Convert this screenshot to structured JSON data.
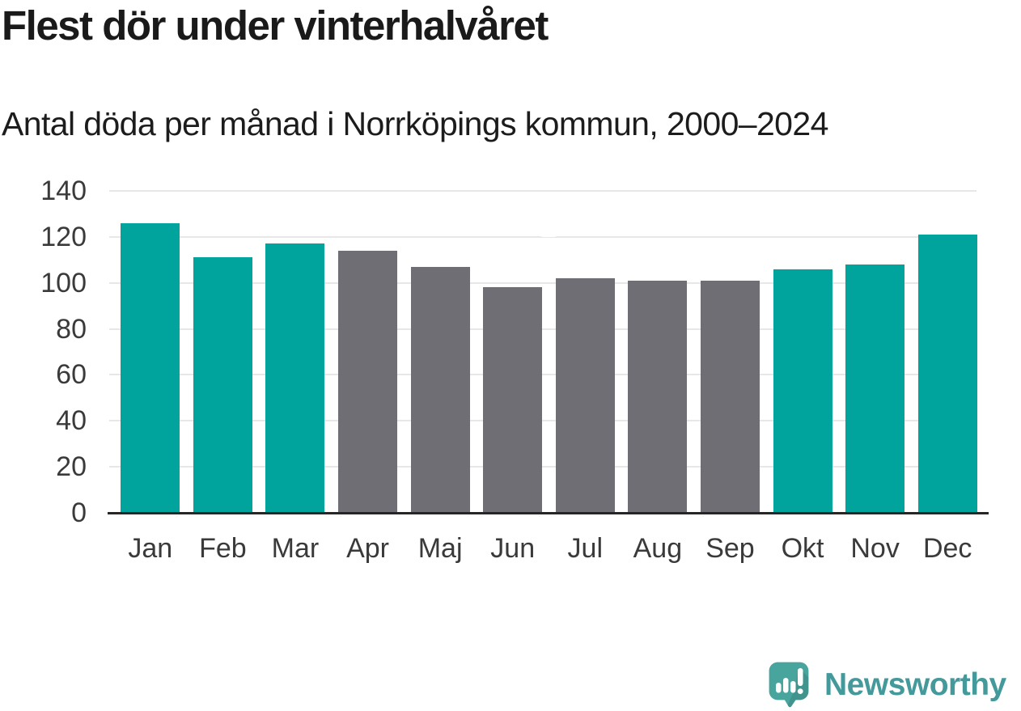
{
  "header": {
    "title": "Flest dör under vinterhalvåret",
    "subtitle": "Antal döda per månad i Norrköpings kommun, 2000–2024"
  },
  "chart_data": {
    "type": "bar",
    "title": "Flest dör under vinterhalvåret",
    "subtitle": "Antal döda per månad i Norrköpings kommun, 2000–2024",
    "categories": [
      "Jan",
      "Feb",
      "Mar",
      "Apr",
      "Maj",
      "Jun",
      "Jul",
      "Aug",
      "Sep",
      "Okt",
      "Nov",
      "Dec"
    ],
    "values": [
      126,
      111,
      117,
      114,
      107,
      98,
      102,
      101,
      101,
      106,
      108,
      121
    ],
    "bar_groups": [
      "winter",
      "winter",
      "winter",
      "summer",
      "summer",
      "summer",
      "summer",
      "summer",
      "summer",
      "winter",
      "winter",
      "winter"
    ],
    "colors": {
      "winter": "#00a49c",
      "summer": "#6e6e74"
    },
    "xlabel": "",
    "ylabel": "",
    "ylim": [
      0,
      140
    ],
    "yticks": [
      0,
      20,
      40,
      60,
      80,
      100,
      120,
      140
    ],
    "grid": true,
    "grid_color": "#e7e7e7",
    "axis_color": "#262626",
    "tick_label_color": "#3a3a3a",
    "legend": false
  },
  "footer": {
    "brand": "Newsworthy",
    "brand_color": "#44999b",
    "icon": "newsworthy-speech-bubble-chart-icon",
    "icon_color": "#48a59d"
  }
}
